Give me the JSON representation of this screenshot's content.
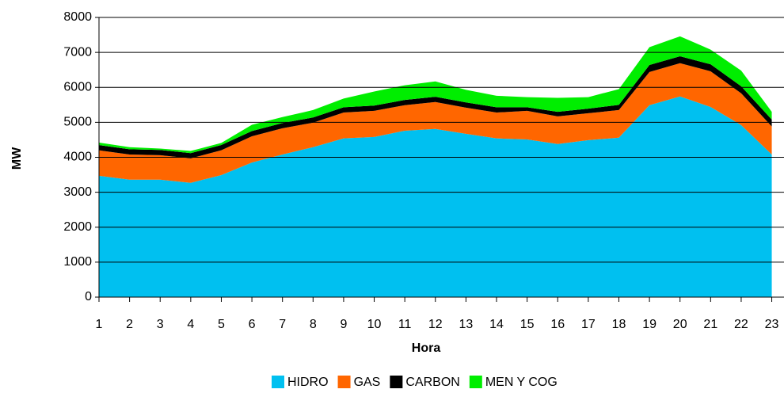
{
  "chart_data": {
    "type": "stacked_area",
    "x_label": "Hora",
    "y_label": "MW",
    "x": [
      1,
      2,
      3,
      4,
      5,
      6,
      7,
      8,
      9,
      10,
      11,
      12,
      13,
      14,
      15,
      16,
      17,
      18,
      19,
      20,
      21,
      22,
      23
    ],
    "xlim": [
      1,
      23.4
    ],
    "ylim": [
      0,
      8000
    ],
    "yticks": [
      0,
      1000,
      2000,
      3000,
      4000,
      5000,
      6000,
      7000,
      8000
    ],
    "grid": true,
    "legend": "bottom",
    "series": [
      {
        "name": "HIDRO",
        "color": "#00c0f0",
        "values": [
          3470,
          3360,
          3360,
          3270,
          3490,
          3850,
          4080,
          4290,
          4540,
          4580,
          4760,
          4810,
          4670,
          4540,
          4510,
          4380,
          4490,
          4560,
          5490,
          5740,
          5440,
          4920,
          4080
        ]
      },
      {
        "name": "GAS",
        "color": "#ff6600",
        "values": [
          730,
          720,
          700,
          700,
          710,
          750,
          750,
          700,
          740,
          750,
          730,
          770,
          750,
          740,
          820,
          790,
          770,
          790,
          950,
          950,
          1020,
          910,
          800
        ]
      },
      {
        "name": "CARBON",
        "color": "#000000",
        "values": [
          150,
          150,
          150,
          150,
          150,
          150,
          150,
          150,
          150,
          150,
          150,
          150,
          150,
          150,
          100,
          130,
          130,
          150,
          200,
          200,
          200,
          200,
          200
        ]
      },
      {
        "name": "MEN Y COG",
        "color": "#00ee00",
        "values": [
          70,
          60,
          40,
          60,
          60,
          180,
          170,
          210,
          250,
          400,
          420,
          440,
          360,
          330,
          290,
          400,
          330,
          450,
          510,
          570,
          420,
          450,
          220
        ]
      }
    ]
  }
}
